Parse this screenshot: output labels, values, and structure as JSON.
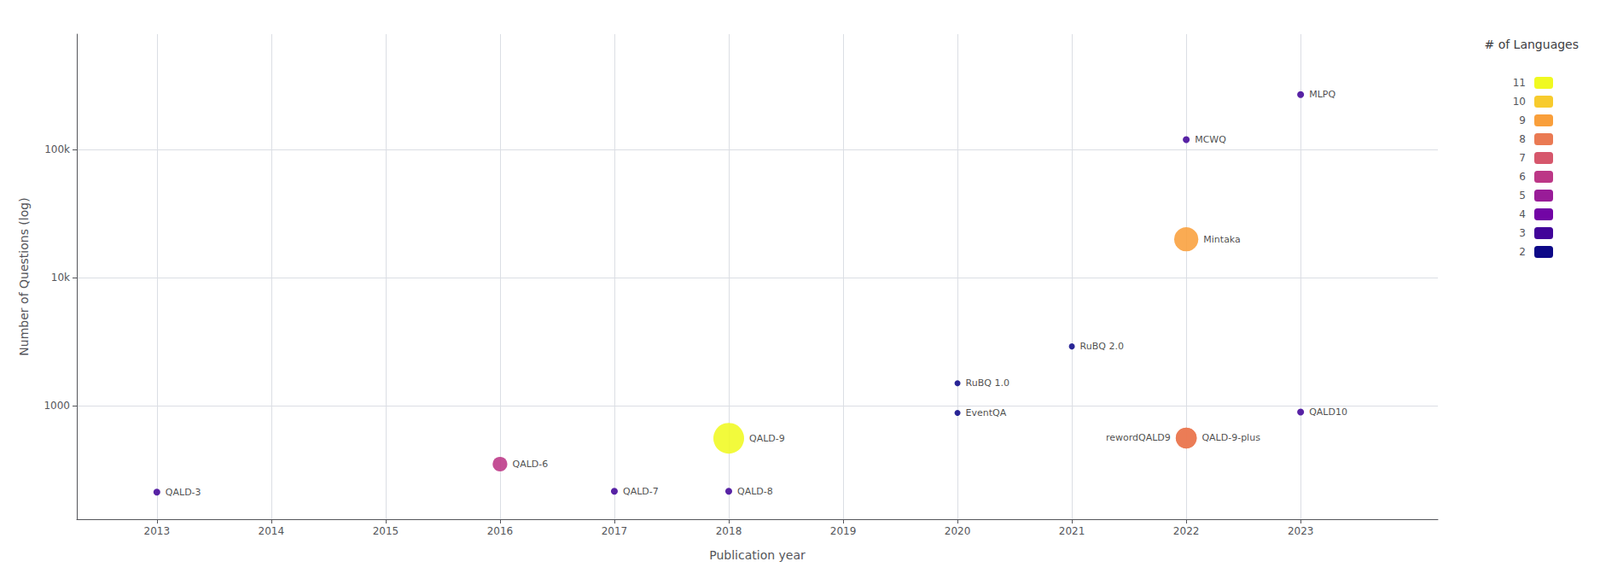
{
  "chart_data": {
    "type": "scatter",
    "x": [
      2013,
      2016,
      2017,
      2018,
      2018,
      2020,
      2020,
      2021,
      2022,
      2022,
      2022,
      2022,
      2023,
      2023
    ],
    "values": [
      212,
      350,
      215,
      215,
      558,
      880,
      1500,
      2910,
      20000,
      120000,
      560,
      560,
      270000,
      894
    ],
    "languages": [
      3,
      6,
      3,
      3,
      11,
      2,
      2,
      2,
      9,
      3,
      8,
      8,
      3,
      3
    ],
    "annotations": [
      "QALD-3",
      "QALD-6",
      "QALD-7",
      "QALD-8",
      "QALD-9",
      "EventQA",
      "RuBQ 1.0",
      "RuBQ 2.0",
      "Mintaka",
      "MCWQ",
      "QALD-9-plus",
      "rewordQALD9",
      "MLPQ",
      "QALD10"
    ],
    "xlabel": "Publication year",
    "ylabel": "Number of Questions (log)",
    "xlim": [
      2012.3,
      2024.2
    ],
    "xticks": [
      2013,
      2014,
      2015,
      2016,
      2017,
      2018,
      2019,
      2020,
      2021,
      2022,
      2023
    ],
    "ylim": [
      130,
      800000
    ],
    "yticks": [
      1000,
      {
        "value": 10000,
        "label": "10k"
      },
      {
        "value": 100000,
        "label": "100k"
      }
    ],
    "log": "y",
    "grid": true,
    "colorbar": {
      "label": "# of Languages",
      "range": [
        2,
        11
      ],
      "ticks": [
        2,
        3,
        4,
        5,
        6,
        7,
        8,
        9,
        10,
        11
      ],
      "colors": [
        "#0d0887",
        "#6a00a8",
        "#b12a90",
        "#e16462",
        "#fca636",
        "#f0f921"
      ]
    }
  }
}
